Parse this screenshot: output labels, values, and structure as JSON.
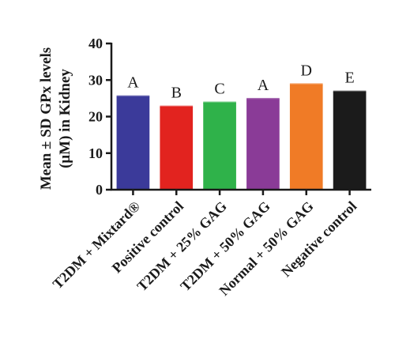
{
  "chart_data": {
    "type": "bar",
    "ylabel_line1": "Mean ± SD GPx levels",
    "ylabel_line2": "(μM) in Kidney",
    "ylim": [
      0,
      40
    ],
    "yticks": [
      0,
      10,
      20,
      30,
      40
    ],
    "categories": [
      "T2DM + Mixtard®",
      "Positive control",
      "T2DM + 25% GAG",
      "T2DM + 50% GAG",
      "Normal + 50% GAG",
      "Negative control"
    ],
    "values": [
      25.5,
      22.7,
      23.8,
      24.8,
      28.8,
      26.8
    ],
    "errors": [
      0.3,
      0.3,
      0.3,
      0.3,
      0.3,
      0.3
    ],
    "significance_labels": [
      "A",
      "B",
      "C",
      "A",
      "D",
      "E"
    ],
    "colors": [
      "#3b3a9a",
      "#e2231f",
      "#2fb24a",
      "#8a3b97",
      "#f07b26",
      "#1b1b1b"
    ],
    "grid": false,
    "legend": "none"
  }
}
